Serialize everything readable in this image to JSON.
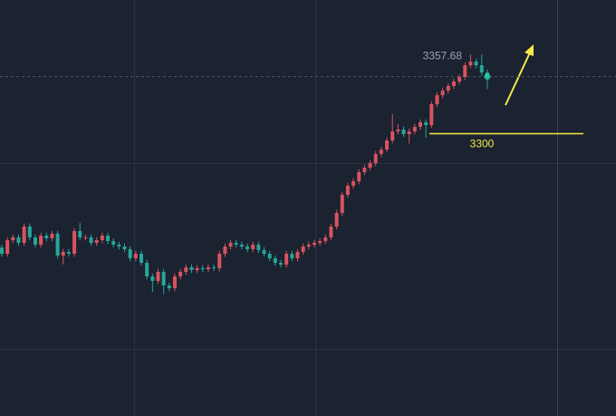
{
  "chart_data": {
    "type": "candlestick",
    "ylim": [
      3015,
      3435
    ],
    "up_color": "#d9535f",
    "down_color": "#26a69a",
    "open": [
      3185.0,
      3178.8,
      3192.5,
      3195.3,
      3189.8,
      3206.3,
      3195.3,
      3188.0,
      3197.1,
      3194.4,
      3199.0,
      3177.0,
      3180.6,
      3178.8,
      3201.7,
      3195.3,
      3195.3,
      3189.8,
      3192.5,
      3197.1,
      3191.6,
      3188.0,
      3186.1,
      3183.4,
      3174.2,
      3178.8,
      3169.7,
      3155.9,
      3151.4,
      3160.5,
      3146.8,
      3144.0,
      3155.9,
      3160.5,
      3165.1,
      3162.3,
      3164.2,
      3163.2,
      3165.1,
      3164.2,
      3178.8,
      3186.1,
      3189.8,
      3188.0,
      3186.1,
      3183.4,
      3188.0,
      3182.5,
      3178.8,
      3174.2,
      3169.7,
      3167.8,
      3178.8,
      3174.2,
      3180.6,
      3186.1,
      3188.0,
      3189.8,
      3191.6,
      3195.3,
      3206.3,
      3220.0,
      3238.3,
      3247.4,
      3252.0,
      3261.2,
      3265.7,
      3270.3,
      3279.5,
      3284.0,
      3293.2,
      3302.3,
      3304.2,
      3299.6,
      3302.3,
      3306.9,
      3311.5,
      3308.7,
      3329.8,
      3338.9,
      3343.5,
      3348.1,
      3352.7,
      3357.2,
      3369.1,
      3372.8,
      3369.1,
      3361.8
    ],
    "high": [
      3188.0,
      3195.5,
      3198.3,
      3198.3,
      3209.3,
      3209.3,
      3198.3,
      3200.1,
      3200.1,
      3202.0,
      3202.0,
      3183.6,
      3183.6,
      3204.7,
      3210.0,
      3198.3,
      3198.3,
      3195.5,
      3200.1,
      3200.1,
      3194.6,
      3191.0,
      3189.1,
      3186.4,
      3181.8,
      3181.8,
      3172.7,
      3158.9,
      3163.5,
      3163.5,
      3149.8,
      3158.9,
      3163.5,
      3168.1,
      3168.1,
      3167.2,
      3167.2,
      3168.1,
      3168.1,
      3181.8,
      3189.1,
      3192.8,
      3192.8,
      3191.0,
      3189.1,
      3191.0,
      3191.0,
      3185.5,
      3181.8,
      3177.2,
      3172.7,
      3181.8,
      3181.8,
      3183.6,
      3189.1,
      3191.0,
      3192.8,
      3194.6,
      3198.3,
      3209.3,
      3223.0,
      3241.3,
      3250.4,
      3255.0,
      3264.2,
      3268.7,
      3273.3,
      3282.5,
      3287.0,
      3296.2,
      3320.0,
      3310.0,
      3307.2,
      3305.3,
      3309.9,
      3314.5,
      3314.5,
      3332.8,
      3341.9,
      3346.5,
      3351.1,
      3355.7,
      3360.2,
      3372.1,
      3380.0,
      3375.8,
      3380.0,
      3364.8
    ],
    "low": [
      3175.8,
      3175.8,
      3189.5,
      3186.8,
      3186.8,
      3192.3,
      3185.0,
      3185.0,
      3191.4,
      3191.4,
      3174.0,
      3168.0,
      3175.8,
      3175.8,
      3192.3,
      3192.3,
      3186.8,
      3186.8,
      3189.5,
      3188.6,
      3185.0,
      3183.1,
      3180.4,
      3171.2,
      3171.2,
      3166.7,
      3152.9,
      3140.0,
      3148.4,
      3138.0,
      3141.0,
      3141.0,
      3152.9,
      3157.5,
      3159.3,
      3159.3,
      3160.2,
      3160.2,
      3161.2,
      3161.2,
      3175.8,
      3183.1,
      3185.0,
      3183.1,
      3180.4,
      3180.4,
      3179.5,
      3175.8,
      3171.2,
      3166.7,
      3164.8,
      3164.8,
      3171.2,
      3171.2,
      3177.6,
      3183.1,
      3185.0,
      3186.8,
      3188.6,
      3192.3,
      3203.3,
      3217.0,
      3235.3,
      3244.4,
      3249.0,
      3258.2,
      3262.7,
      3267.3,
      3276.5,
      3281.0,
      3290.2,
      3299.3,
      3296.6,
      3290.0,
      3299.3,
      3303.9,
      3296.0,
      3305.7,
      3326.8,
      3335.9,
      3340.5,
      3345.1,
      3349.7,
      3354.2,
      3366.1,
      3366.1,
      3358.8,
      3345.0
    ],
    "close": [
      3178.8,
      3192.5,
      3195.3,
      3189.8,
      3206.3,
      3195.3,
      3188.0,
      3197.1,
      3194.4,
      3199.0,
      3177.0,
      3180.6,
      3178.8,
      3201.7,
      3195.3,
      3195.3,
      3189.8,
      3192.5,
      3197.1,
      3191.6,
      3188.0,
      3186.1,
      3183.4,
      3174.2,
      3178.8,
      3169.7,
      3155.9,
      3151.4,
      3160.5,
      3146.8,
      3144.0,
      3155.9,
      3160.5,
      3165.1,
      3162.3,
      3164.2,
      3163.2,
      3165.1,
      3164.2,
      3178.8,
      3186.1,
      3189.8,
      3188.0,
      3186.1,
      3183.4,
      3188.0,
      3182.5,
      3178.8,
      3174.2,
      3169.7,
      3167.8,
      3178.8,
      3174.2,
      3180.6,
      3186.1,
      3188.0,
      3189.8,
      3191.6,
      3195.3,
      3206.3,
      3220.0,
      3238.3,
      3247.4,
      3252.0,
      3261.2,
      3265.7,
      3270.3,
      3279.5,
      3284.0,
      3293.2,
      3302.3,
      3304.2,
      3299.6,
      3302.3,
      3306.9,
      3311.5,
      3308.7,
      3329.8,
      3338.9,
      3343.5,
      3348.1,
      3352.7,
      3357.2,
      3369.1,
      3372.8,
      3369.1,
      3361.8,
      3357.68
    ],
    "level": 3300,
    "level_color": "#f5e94a"
  }
}
